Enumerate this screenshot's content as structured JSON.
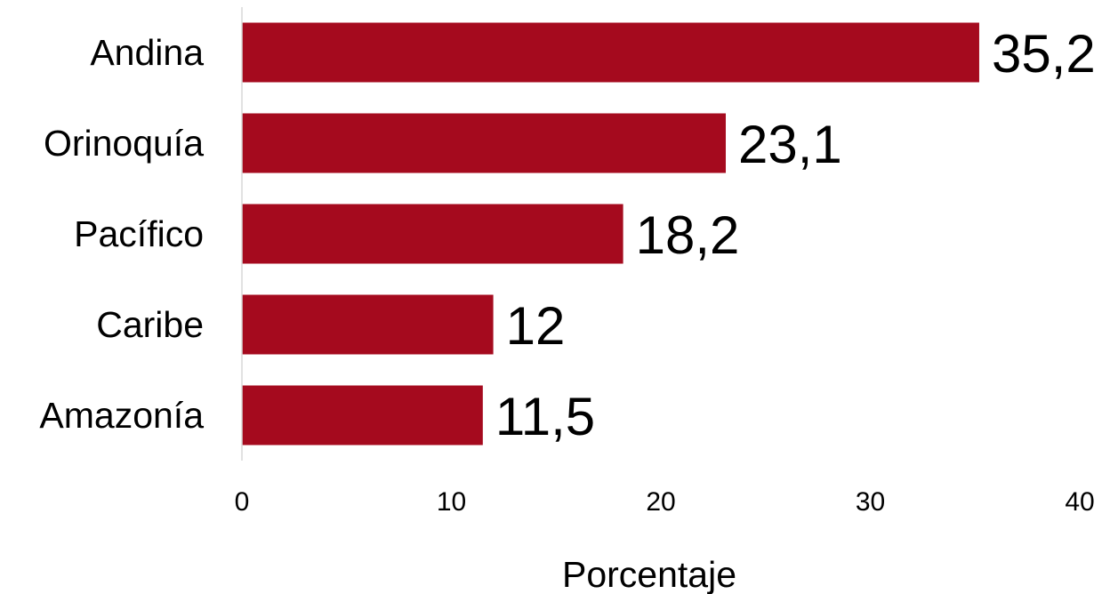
{
  "chart_data": {
    "type": "bar",
    "orientation": "horizontal",
    "categories": [
      "Andina",
      "Orinoquía",
      "Pacífico",
      "Caribe",
      "Amazonía"
    ],
    "values": [
      35.2,
      23.1,
      18.2,
      12,
      11.5
    ],
    "data_labels": [
      "35,2",
      "23,1",
      "18,2",
      "12",
      "11,5"
    ],
    "xlabel": "Porcentaje",
    "ylabel": "",
    "xlim": [
      0,
      40
    ],
    "xticks": [
      0,
      10,
      20,
      30,
      40
    ],
    "xtick_labels": [
      "0",
      "10",
      "20",
      "30",
      "40"
    ],
    "grid": false,
    "legend": "none",
    "bar_color": "#A50A1E",
    "axis_color": "#D9D9D9"
  }
}
